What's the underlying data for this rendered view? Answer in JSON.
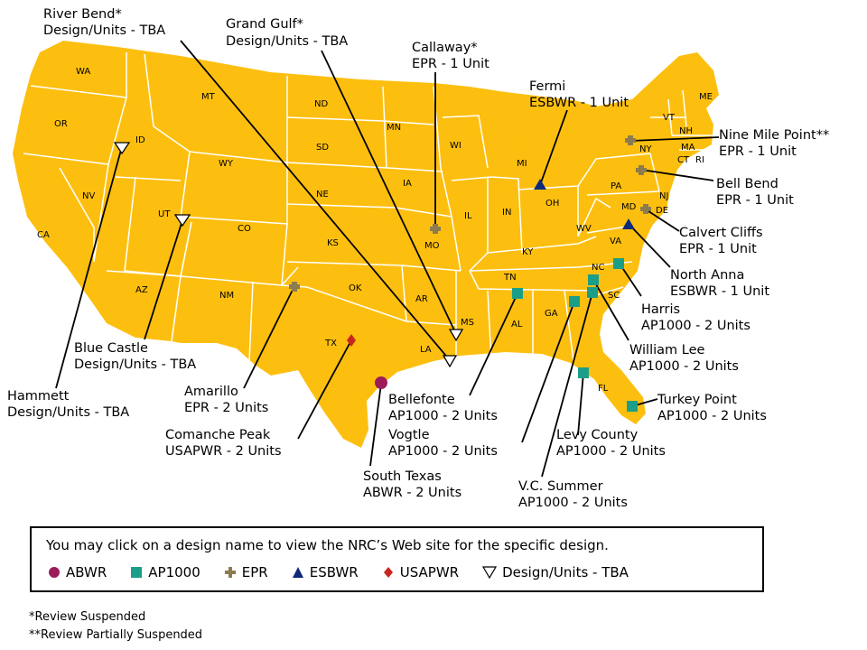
{
  "states": [
    "WA",
    "OR",
    "ID",
    "MT",
    "WY",
    "NV",
    "CA",
    "UT",
    "CO",
    "AZ",
    "NM",
    "ND",
    "SD",
    "NE",
    "KS",
    "OK",
    "TX",
    "MN",
    "IA",
    "MO",
    "AR",
    "LA",
    "WI",
    "IL",
    "MI",
    "IN",
    "OH",
    "KY",
    "TN",
    "MS",
    "AL",
    "GA",
    "FL",
    "SC",
    "NC",
    "VA",
    "WV",
    "PA",
    "NY",
    "VT",
    "NH",
    "ME",
    "MA",
    "CT",
    "RI",
    "NJ",
    "DE",
    "MD"
  ],
  "sites": [
    {
      "name": "River Bend*",
      "design": "Design/Units - TBA",
      "type": "tba"
    },
    {
      "name": "Grand Gulf*",
      "design": "Design/Units - TBA",
      "type": "tba"
    },
    {
      "name": "Callaway*",
      "design": "EPR - 1 Unit",
      "type": "epr"
    },
    {
      "name": "Fermi",
      "design": "ESBWR - 1 Unit",
      "type": "esbwr"
    },
    {
      "name": "Nine Mile Point**",
      "design": "EPR - 1 Unit",
      "type": "epr"
    },
    {
      "name": "Bell Bend",
      "design": "EPR - 1 Unit",
      "type": "epr"
    },
    {
      "name": "Calvert Cliffs",
      "design": "EPR - 1 Unit",
      "type": "epr"
    },
    {
      "name": "North Anna",
      "design": "ESBWR - 1 Unit",
      "type": "esbwr"
    },
    {
      "name": "Harris",
      "design": "AP1000 - 2 Units",
      "type": "ap1000"
    },
    {
      "name": "William Lee",
      "design": "AP1000 - 2 Units",
      "type": "ap1000"
    },
    {
      "name": "Turkey Point",
      "design": "AP1000 - 2 Units",
      "type": "ap1000"
    },
    {
      "name": "Levy County",
      "design": "AP1000 - 2 Units",
      "type": "ap1000"
    },
    {
      "name": "V.C. Summer",
      "design": "AP1000 - 2 Units",
      "type": "ap1000"
    },
    {
      "name": "South Texas",
      "design": "ABWR - 2 Units",
      "type": "abwr"
    },
    {
      "name": "Vogtle",
      "design": "AP1000 - 2 Units",
      "type": "ap1000"
    },
    {
      "name": "Bellefonte",
      "design": "AP1000 - 2 Units",
      "type": "ap1000"
    },
    {
      "name": "Comanche Peak",
      "design": "USAPWR - 2 Units",
      "type": "usapwr"
    },
    {
      "name": "Amarillo",
      "design": "EPR - 2 Units",
      "type": "epr"
    },
    {
      "name": "Blue Castle",
      "design": "Design/Units - TBA",
      "type": "tba"
    },
    {
      "name": "Hammett",
      "design": "Design/Units - TBA",
      "type": "tba"
    }
  ],
  "legend": {
    "title": "You may click on a design name to view the NRC’s Web site for the specific design.",
    "items": [
      {
        "label": "ABWR",
        "type": "abwr"
      },
      {
        "label": "AP1000",
        "type": "ap1000"
      },
      {
        "label": "EPR",
        "type": "epr"
      },
      {
        "label": "ESBWR",
        "type": "esbwr"
      },
      {
        "label": "USAPWR",
        "type": "usapwr"
      },
      {
        "label": "Design/Units - TBA",
        "type": "tba"
      }
    ]
  },
  "footnotes": [
    "*Review Suspended",
    "**Review Partially Suspended"
  ],
  "colors": {
    "land": "#FDBF0F",
    "border": "#FFFFFF",
    "abwr": "#9B1B5A",
    "ap1000": "#1B9E87",
    "epr": "#8C7B4F",
    "esbwr": "#0D2A7A",
    "usapwr": "#C8261E",
    "tba": "#FFFFFF"
  }
}
